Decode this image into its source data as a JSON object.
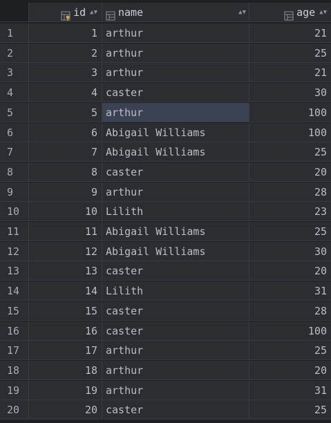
{
  "columns": {
    "id": "id",
    "name": "name",
    "age": "age"
  },
  "rows": [
    {
      "n": "1",
      "id": "1",
      "name": "arthur",
      "age": "21"
    },
    {
      "n": "2",
      "id": "2",
      "name": "arthur",
      "age": "25"
    },
    {
      "n": "3",
      "id": "3",
      "name": "arthur",
      "age": "21"
    },
    {
      "n": "4",
      "id": "4",
      "name": "caster",
      "age": "30"
    },
    {
      "n": "5",
      "id": "5",
      "name": "arthur",
      "age": "100"
    },
    {
      "n": "6",
      "id": "6",
      "name": "Abigail Williams",
      "age": "100"
    },
    {
      "n": "7",
      "id": "7",
      "name": "Abigail Williams",
      "age": "25"
    },
    {
      "n": "8",
      "id": "8",
      "name": "caster",
      "age": "20"
    },
    {
      "n": "9",
      "id": "9",
      "name": "arthur",
      "age": "28"
    },
    {
      "n": "10",
      "id": "10",
      "name": "Lilith",
      "age": "23"
    },
    {
      "n": "11",
      "id": "11",
      "name": "Abigail Williams",
      "age": "25"
    },
    {
      "n": "12",
      "id": "12",
      "name": "Abigail Williams",
      "age": "30"
    },
    {
      "n": "13",
      "id": "13",
      "name": "caster",
      "age": "20"
    },
    {
      "n": "14",
      "id": "14",
      "name": "Lilith",
      "age": "31"
    },
    {
      "n": "15",
      "id": "15",
      "name": "caster",
      "age": "28"
    },
    {
      "n": "16",
      "id": "16",
      "name": "caster",
      "age": "100"
    },
    {
      "n": "17",
      "id": "17",
      "name": "arthur",
      "age": "25"
    },
    {
      "n": "18",
      "id": "18",
      "name": "arthur",
      "age": "20"
    },
    {
      "n": "19",
      "id": "19",
      "name": "arthur",
      "age": "31"
    },
    {
      "n": "20",
      "id": "20",
      "name": "caster",
      "age": "25"
    }
  ],
  "selected_row": 5,
  "icons": {
    "id": "key-column-icon",
    "name": "column-icon",
    "age": "column-icon",
    "sort": "sort-arrows-icon"
  },
  "colors": {
    "background": "#1e1f22",
    "cell": "#2b2d30",
    "selection": "#3b4253",
    "text": "#bcbec4"
  }
}
